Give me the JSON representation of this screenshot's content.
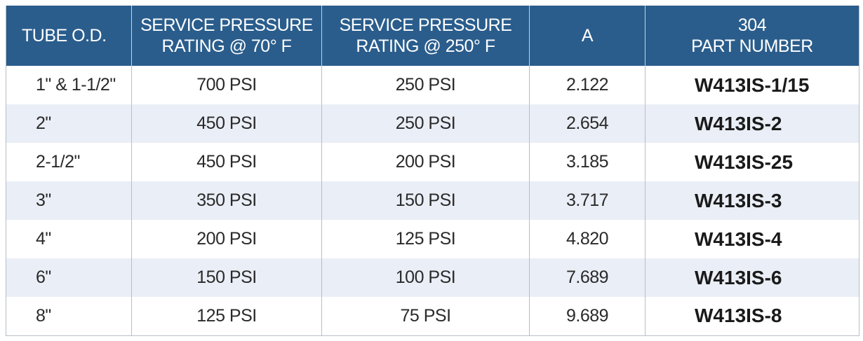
{
  "table": {
    "headers": [
      [
        "TUBE O.D."
      ],
      [
        "SERVICE PRESSURE",
        "RATING @ 70° F"
      ],
      [
        "SERVICE PRESSURE",
        "RATING @ 250° F"
      ],
      [
        "A"
      ],
      [
        "304",
        "PART NUMBER"
      ]
    ],
    "rows": [
      [
        "1\" & 1-1/2\"",
        "700 PSI",
        "250 PSI",
        "2.122",
        "W413IS-1/15"
      ],
      [
        "2\"",
        "450 PSI",
        "250 PSI",
        "2.654",
        "W413IS-2"
      ],
      [
        "2-1/2\"",
        "450 PSI",
        "200 PSI",
        "3.185",
        "W413IS-25"
      ],
      [
        "3\"",
        "350 PSI",
        "150 PSI",
        "3.717",
        "W413IS-3"
      ],
      [
        "4\"",
        "200 PSI",
        "125 PSI",
        "4.820",
        "W413IS-4"
      ],
      [
        "6\"",
        "150 PSI",
        "100 PSI",
        "7.689",
        "W413IS-6"
      ],
      [
        "8\"",
        "125 PSI",
        "75 PSI",
        "9.689",
        "W413IS-8"
      ]
    ],
    "colors": {
      "header_bg": "#2a5d8c",
      "header_text": "#ffffff",
      "stripe_bg": "#eaeef6"
    }
  }
}
